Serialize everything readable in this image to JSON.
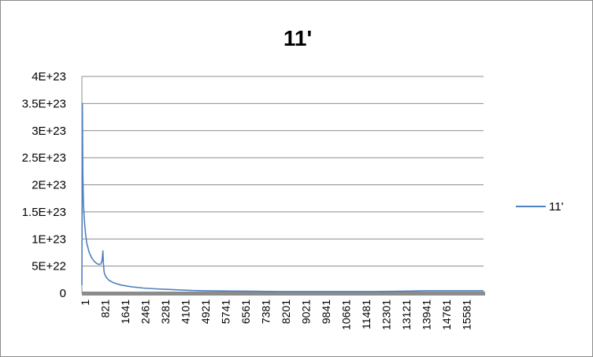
{
  "chart_data": {
    "type": "line",
    "title": "11'",
    "xlabel": "",
    "ylabel": "",
    "ylim": [
      0,
      4e+23
    ],
    "y_ticks": [
      "0",
      "5E+22",
      "1E+23",
      "1.5E+23",
      "2E+23",
      "2.5E+23",
      "3E+23",
      "3.5E+23",
      "4E+23"
    ],
    "y_tick_values": [
      0,
      5e+22,
      1e+23,
      1.5e+23,
      2e+23,
      2.5e+23,
      3e+23,
      3.5e+23,
      4e+23
    ],
    "x_ticks": [
      "1",
      "821",
      "1641",
      "2461",
      "3281",
      "4101",
      "4921",
      "5741",
      "6561",
      "7381",
      "8201",
      "9021",
      "9841",
      "10661",
      "11481",
      "12301",
      "13121",
      "13941",
      "14761",
      "15581"
    ],
    "xlim": [
      1,
      16400
    ],
    "grid": "horizontal",
    "legend": "right",
    "series": [
      {
        "name": "11'",
        "color": "#4f81bd",
        "x": [
          1,
          20,
          40,
          60,
          80,
          100,
          150,
          200,
          300,
          400,
          500,
          600,
          700,
          780,
          820,
          840,
          860,
          880,
          900,
          920,
          950,
          1000,
          1100,
          1300,
          1600,
          2000,
          2500,
          3000,
          3500,
          4000,
          4500,
          5000,
          6000,
          7000,
          8000,
          9000,
          10000,
          11000,
          12000,
          13000,
          13500,
          14000,
          15000,
          16000,
          16400
        ],
        "values": [
          1.5e+22,
          3.5e+23,
          2.2e+23,
          1.75e+23,
          1.5e+23,
          1.35e+23,
          1.1e+23,
          9.2e+22,
          7.5e+22,
          6.5e+22,
          5.9e+22,
          5.5e+22,
          5.3e+22,
          5.4e+22,
          6e+22,
          6.8e+22,
          7.8e+22,
          5.5e+22,
          4.2e+22,
          3.7e+22,
          3.3e+22,
          2.9e+22,
          2.4e+22,
          1.9e+22,
          1.5e+22,
          1.2e+22,
          9.5e+21,
          8e+21,
          7e+21,
          6e+21,
          5e+21,
          4.5e+21,
          4e+21,
          3.5e+21,
          3e+21,
          3e+21,
          3e+21,
          3e+21,
          3e+21,
          3.5e+21,
          4e+21,
          4.5e+21,
          4.5e+21,
          4.5e+21,
          4.5e+21
        ]
      }
    ]
  }
}
